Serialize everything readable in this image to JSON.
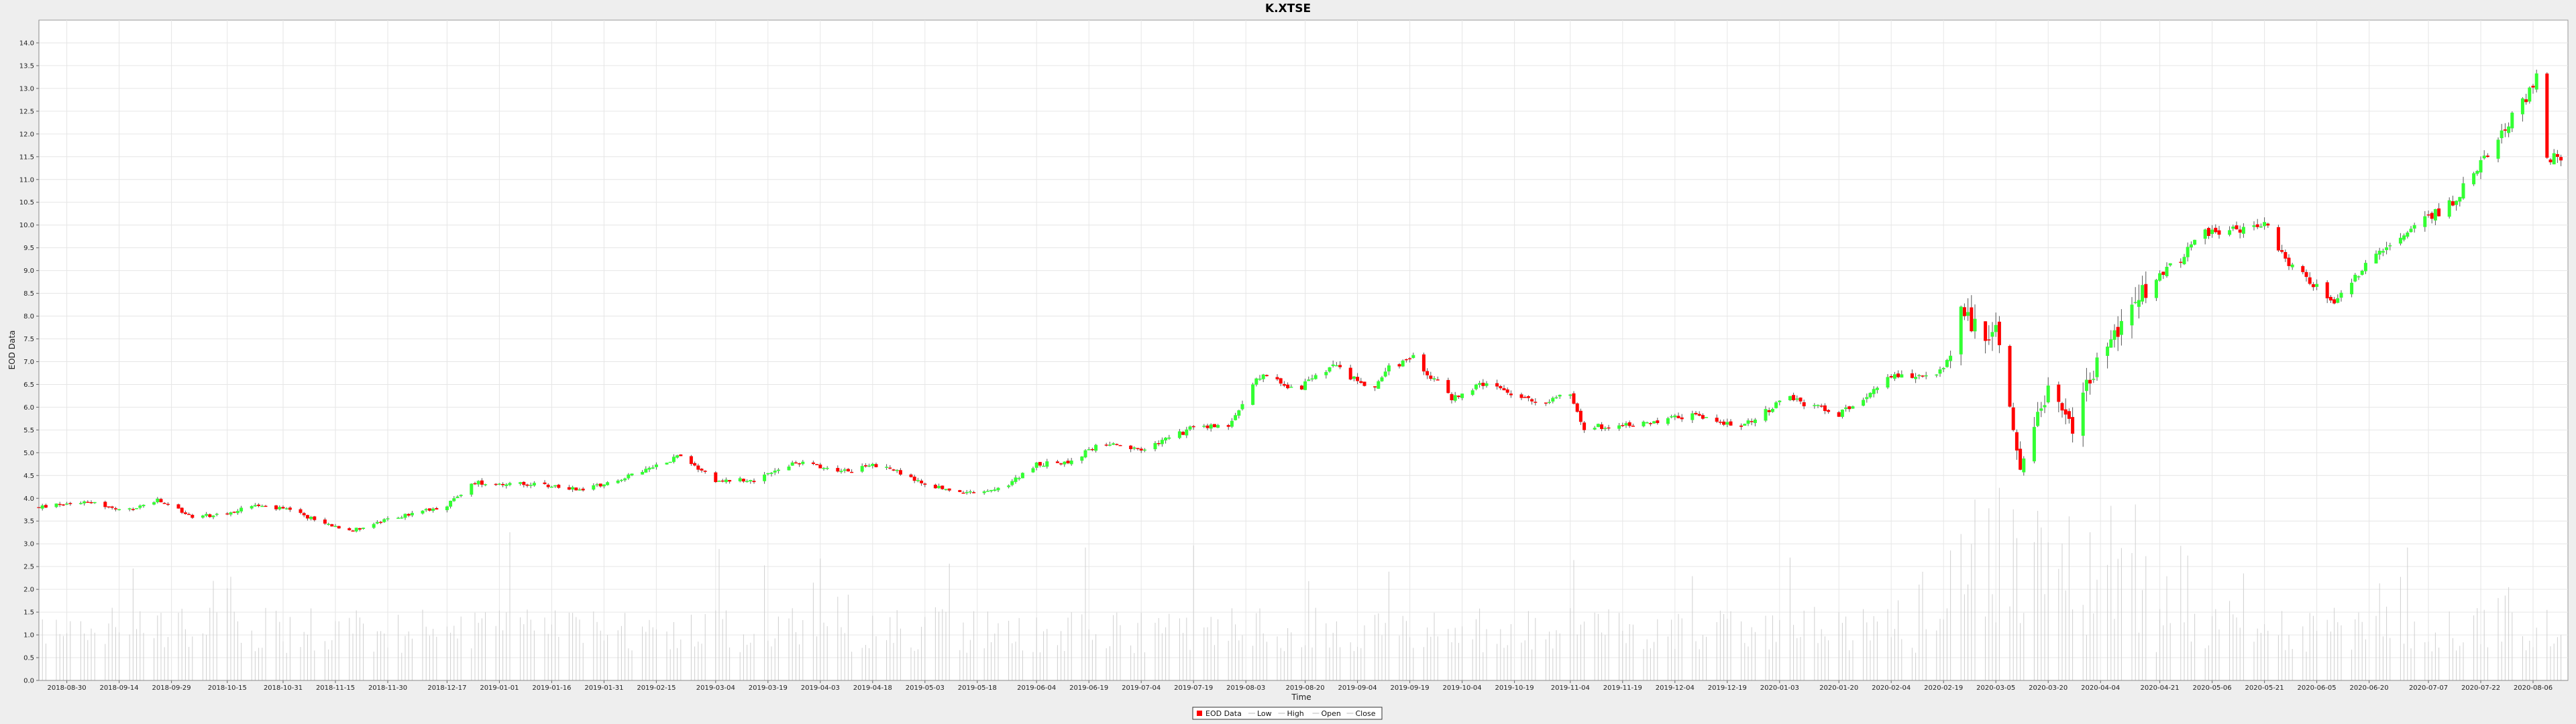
{
  "chart_data": {
    "type": "candlestick",
    "title": "K.XTSE",
    "xlabel": "Time",
    "ylabel": "EOD Data",
    "ylim": [
      0.0,
      14.5
    ],
    "y_ticks": [
      "0.0",
      "0.5",
      "1.0",
      "1.5",
      "2.0",
      "2.5",
      "3.0",
      "3.5",
      "4.0",
      "4.5",
      "5.0",
      "5.5",
      "6.0",
      "6.5",
      "7.0",
      "7.5",
      "8.0",
      "8.5",
      "9.0",
      "9.5",
      "10.0",
      "10.5",
      "11.0",
      "11.5",
      "12.0",
      "12.5",
      "13.0",
      "13.5",
      "14.0"
    ],
    "x_range": [
      "2018-08-22",
      "2020-08-16"
    ],
    "x_ticks": [
      "2018-08-30",
      "2018-09-14",
      "2018-09-29",
      "2018-10-15",
      "2018-10-31",
      "2018-11-15",
      "2018-11-30",
      "2018-12-17",
      "2019-01-01",
      "2019-01-16",
      "2019-01-31",
      "2019-02-15",
      "2019-03-04",
      "2019-03-19",
      "2019-04-03",
      "2019-04-18",
      "2019-05-03",
      "2019-05-18",
      "2019-06-04",
      "2019-06-19",
      "2019-07-04",
      "2019-07-19",
      "2019-08-03",
      "2019-08-20",
      "2019-09-04",
      "2019-09-19",
      "2019-10-04",
      "2019-10-19",
      "2019-11-04",
      "2019-11-19",
      "2019-12-04",
      "2019-12-19",
      "2020-01-03",
      "2020-01-20",
      "2020-02-04",
      "2020-02-19",
      "2020-03-05",
      "2020-03-20",
      "2020-04-04",
      "2020-04-21",
      "2020-05-06",
      "2020-05-21",
      "2020-06-05",
      "2020-06-20",
      "2020-07-07",
      "2020-07-22",
      "2020-08-06"
    ],
    "grid": true,
    "legend_position": "bottom-center",
    "legend": [
      "EOD Data",
      "Low",
      "High",
      "Open",
      "Close"
    ],
    "colors": {
      "up": "#33ff33",
      "down": "#ff0000",
      "wick": "#555555",
      "volume": "#d0d0d0",
      "grid": "#e6e6e6",
      "plot_bg": "#ffffff",
      "page_bg": "#eeeeee"
    },
    "price_path": [
      [
        "2018-08-22",
        3.8
      ],
      [
        "2018-09-05",
        3.95
      ],
      [
        "2018-09-15",
        3.7
      ],
      [
        "2018-09-25",
        3.95
      ],
      [
        "2018-10-05",
        3.6
      ],
      [
        "2018-10-15",
        3.65
      ],
      [
        "2018-10-22",
        3.85
      ],
      [
        "2018-11-01",
        3.75
      ],
      [
        "2018-11-12",
        3.45
      ],
      [
        "2018-11-20",
        3.3
      ],
      [
        "2018-12-01",
        3.55
      ],
      [
        "2018-12-17",
        3.85
      ],
      [
        "2018-12-25",
        4.35
      ],
      [
        "2019-01-10",
        4.3
      ],
      [
        "2019-01-25",
        4.2
      ],
      [
        "2019-02-08",
        4.5
      ],
      [
        "2019-02-22",
        4.95
      ],
      [
        "2019-03-04",
        4.4
      ],
      [
        "2019-03-15",
        4.4
      ],
      [
        "2019-03-28",
        4.8
      ],
      [
        "2019-04-10",
        4.6
      ],
      [
        "2019-04-20",
        4.75
      ],
      [
        "2019-05-03",
        4.3
      ],
      [
        "2019-05-15",
        4.1
      ],
      [
        "2019-05-25",
        4.2
      ],
      [
        "2019-06-04",
        4.75
      ],
      [
        "2019-06-14",
        4.8
      ],
      [
        "2019-06-22",
        5.2
      ],
      [
        "2019-07-04",
        5.05
      ],
      [
        "2019-07-19",
        5.55
      ],
      [
        "2019-07-29",
        5.6
      ],
      [
        "2019-08-07",
        6.7
      ],
      [
        "2019-08-18",
        6.4
      ],
      [
        "2019-08-28",
        6.9
      ],
      [
        "2019-09-08",
        6.4
      ],
      [
        "2019-09-13",
        6.85
      ],
      [
        "2019-09-20",
        7.1
      ],
      [
        "2019-10-01",
        6.2
      ],
      [
        "2019-10-10",
        6.5
      ],
      [
        "2019-10-25",
        6.1
      ],
      [
        "2019-11-04",
        6.3
      ],
      [
        "2019-11-08",
        5.55
      ],
      [
        "2019-11-25",
        5.65
      ],
      [
        "2019-12-10",
        5.85
      ],
      [
        "2019-12-23",
        5.55
      ],
      [
        "2020-01-05",
        6.2
      ],
      [
        "2020-01-20",
        5.85
      ],
      [
        "2020-02-04",
        6.65
      ],
      [
        "2020-02-19",
        6.8
      ],
      [
        "2020-02-24",
        8.1
      ],
      [
        "2020-03-02",
        7.4
      ],
      [
        "2020-03-05",
        7.6
      ],
      [
        "2020-03-12",
        4.6
      ],
      [
        "2020-03-16",
        5.5
      ],
      [
        "2020-03-20",
        6.5
      ],
      [
        "2020-03-27",
        5.6
      ],
      [
        "2020-04-04",
        7.2
      ],
      [
        "2020-04-14",
        8.4
      ],
      [
        "2020-04-26",
        9.2
      ],
      [
        "2020-05-04",
        9.8
      ],
      [
        "2020-05-21",
        10.0
      ],
      [
        "2020-05-28",
        9.2
      ],
      [
        "2020-06-10",
        8.3
      ],
      [
        "2020-06-20",
        9.2
      ],
      [
        "2020-07-02",
        9.9
      ],
      [
        "2020-07-14",
        10.5
      ],
      [
        "2020-07-24",
        11.6
      ],
      [
        "2020-08-04",
        12.8
      ],
      [
        "2020-08-07",
        13.2
      ],
      [
        "2020-08-10",
        11.4
      ],
      [
        "2020-08-16",
        11.6
      ]
    ]
  }
}
